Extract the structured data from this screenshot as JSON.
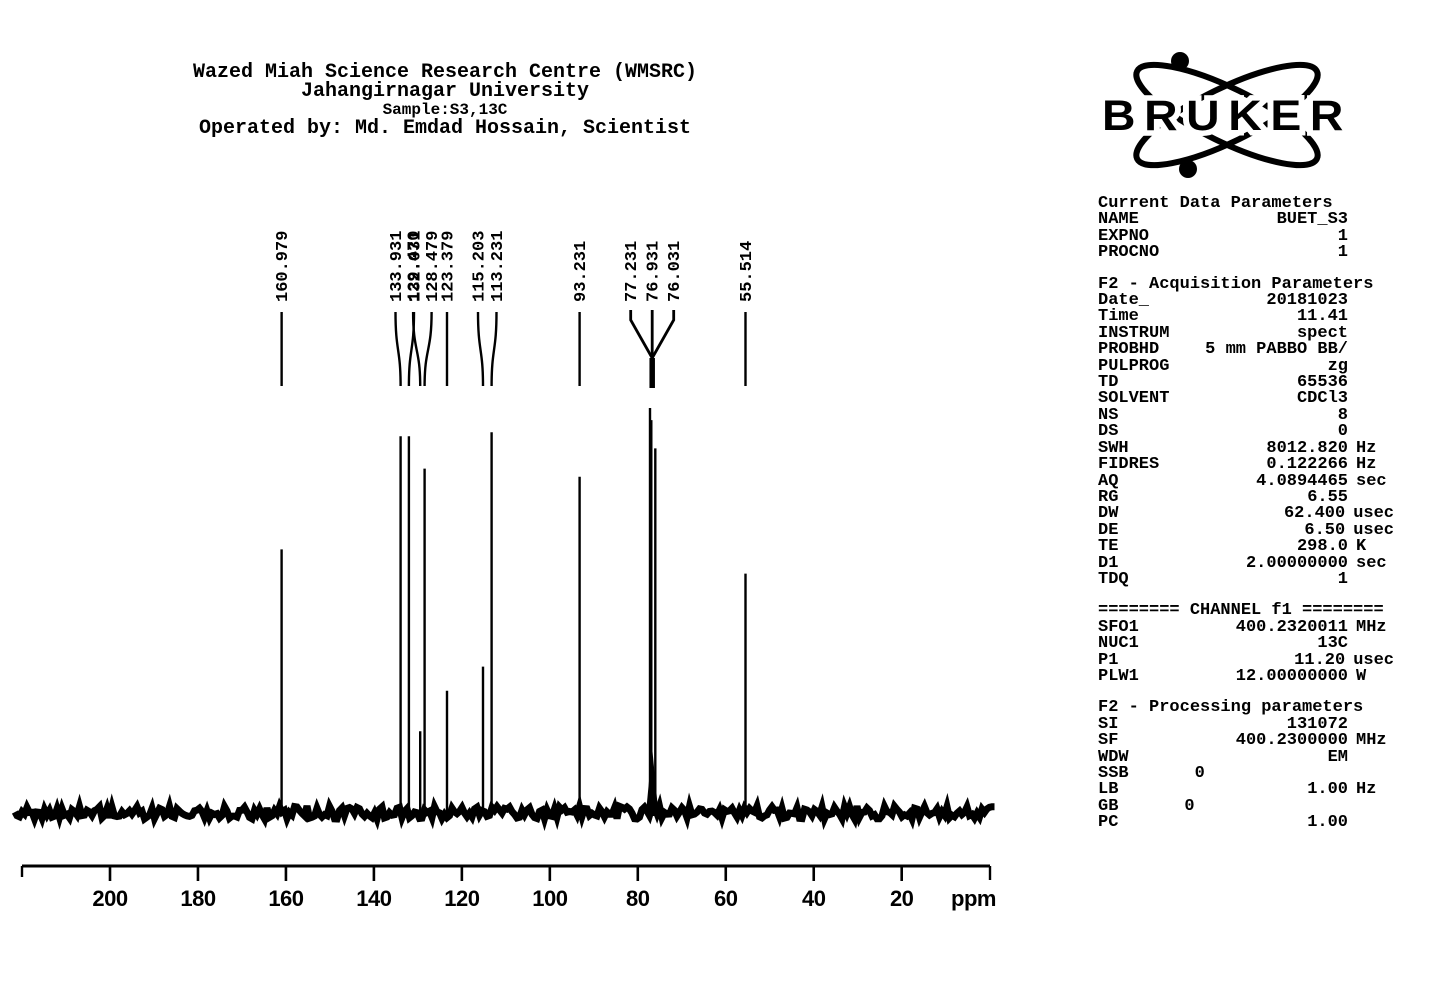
{
  "header": {
    "lines": [
      "Wazed Miah Science Research Centre (WMSRC)",
      "Jahangirnagar University",
      "Sample:S3,13C",
      "Operated by: Md. Emdad Hossain, Scientist"
    ]
  },
  "logo": {
    "brand": "BRUKER"
  },
  "parameters": {
    "sections": [
      {
        "title": "Current Data Parameters",
        "rows": [
          {
            "label": "NAME",
            "value": "BUET_S3",
            "unit": ""
          },
          {
            "label": "EXPNO",
            "value": "1",
            "unit": ""
          },
          {
            "label": "PROCNO",
            "value": "1",
            "unit": ""
          }
        ]
      },
      {
        "title": "F2 - Acquisition Parameters",
        "rows": [
          {
            "label": "Date_",
            "value": "20181023",
            "unit": ""
          },
          {
            "label": "Time",
            "value": "11.41",
            "unit": ""
          },
          {
            "label": "INSTRUM",
            "value": "spect",
            "unit": ""
          },
          {
            "label": "PROBHD",
            "value": "5 mm PABBO BB/",
            "unit": ""
          },
          {
            "label": "PULPROG",
            "value": "zg",
            "unit": ""
          },
          {
            "label": "TD",
            "value": "65536",
            "unit": ""
          },
          {
            "label": "SOLVENT",
            "value": "CDCl3",
            "unit": ""
          },
          {
            "label": "NS",
            "value": "8",
            "unit": ""
          },
          {
            "label": "DS",
            "value": "0",
            "unit": ""
          },
          {
            "label": "SWH",
            "value": "8012.820",
            "unit": "Hz"
          },
          {
            "label": "FIDRES",
            "value": "0.122266",
            "unit": "Hz"
          },
          {
            "label": "AQ",
            "value": "4.0894465",
            "unit": "sec"
          },
          {
            "label": "RG",
            "value": "6.55",
            "unit": ""
          },
          {
            "label": "DW",
            "value": "62.400",
            "unit": "usec"
          },
          {
            "label": "DE",
            "value": "6.50",
            "unit": "usec"
          },
          {
            "label": "TE",
            "value": "298.0",
            "unit": "K"
          },
          {
            "label": "D1",
            "value": "2.00000000",
            "unit": "sec"
          },
          {
            "label": "TDQ",
            "value": "1",
            "unit": ""
          }
        ]
      },
      {
        "title": "======== CHANNEL f1 ========",
        "rows": [
          {
            "label": "SFO1",
            "value": "400.2320011",
            "unit": "MHz"
          },
          {
            "label": "NUC1",
            "value": "13C",
            "unit": ""
          },
          {
            "label": "P1",
            "value": "11.20",
            "unit": "usec"
          },
          {
            "label": "PLW1",
            "value": "12.00000000",
            "unit": "W"
          }
        ]
      },
      {
        "title": "F2 - Processing parameters",
        "rows": [
          {
            "label": "SI",
            "value": "131072",
            "unit": ""
          },
          {
            "label": "SF",
            "value": "400.2300000",
            "unit": "MHz"
          },
          {
            "label": "WDW",
            "value": "EM",
            "unit": ""
          },
          {
            "label": "SSB",
            "value": "0",
            "unit": "",
            "mid": true
          },
          {
            "label": "LB",
            "value": "1.00",
            "unit": "Hz"
          },
          {
            "label": "GB",
            "value": "0",
            "unit": "",
            "mid": true
          },
          {
            "label": "PC",
            "value": "1.00",
            "unit": ""
          }
        ]
      }
    ]
  },
  "chart_data": {
    "type": "line",
    "title": "Sample:S3,13C",
    "xlabel": "ppm",
    "x_ticks": [
      200,
      180,
      160,
      140,
      120,
      100,
      80,
      60,
      40,
      20
    ],
    "x_range_ppm": [
      220.5,
      -4.5
    ],
    "grid": false,
    "line_color": "#000000",
    "peaks": [
      {
        "ppm": 160.979,
        "label": "160.979",
        "intensity": 0.65,
        "group": 0
      },
      {
        "ppm": 133.931,
        "label": "133.931",
        "intensity": 0.93,
        "group": 1
      },
      {
        "ppm": 132.031,
        "label": "132.031",
        "intensity": 0.93,
        "group": 1
      },
      {
        "ppm": 129.47,
        "label": "129.470",
        "intensity": 0.2,
        "group": 2
      },
      {
        "ppm": 128.479,
        "label": "128.479",
        "intensity": 0.85,
        "group": 2
      },
      {
        "ppm": 123.379,
        "label": "123.379",
        "intensity": 0.3,
        "group": 3
      },
      {
        "ppm": 115.203,
        "label": "115.203",
        "intensity": 0.36,
        "group": 4
      },
      {
        "ppm": 113.231,
        "label": "113.231",
        "intensity": 0.94,
        "group": 4
      },
      {
        "ppm": 93.231,
        "label": "93.231",
        "intensity": 0.83,
        "group": 5
      },
      {
        "ppm": 77.231,
        "label": "77.231",
        "intensity": 1.0,
        "group": 6
      },
      {
        "ppm": 76.931,
        "label": "76.931",
        "intensity": 0.97,
        "group": 6
      },
      {
        "ppm": 76.031,
        "label": "76.031",
        "intensity": 0.9,
        "group": 6
      },
      {
        "ppm": 55.514,
        "label": "55.514",
        "intensity": 0.59,
        "group": 7
      }
    ]
  }
}
